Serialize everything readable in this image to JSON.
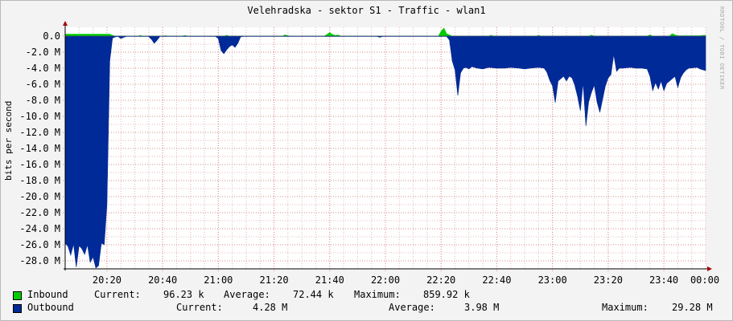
{
  "title": "Velehradska - sektor S1 - Traffic - wlan1",
  "watermark": "RRDTOOL / TOBI OETIKER",
  "colors": {
    "inbound": "#00cc00",
    "outbound": "#002a97",
    "grid_minor": "#e4b8b8",
    "grid_major": "#d98a8a",
    "axis": "#000000",
    "arrow": "#aa0000"
  },
  "chart_data": {
    "type": "area",
    "ylabel": "bits per second",
    "ylim": [
      -29,
      0.5
    ],
    "xlim_minutes": [
      0,
      230
    ],
    "yticks": [
      {
        "value": 0,
        "label": "0.0"
      },
      {
        "value": -2,
        "label": "-2.0 M"
      },
      {
        "value": -4,
        "label": "-4.0 M"
      },
      {
        "value": -6,
        "label": "-6.0 M"
      },
      {
        "value": -8,
        "label": "-8.0 M"
      },
      {
        "value": -10,
        "label": "-10.0 M"
      },
      {
        "value": -12,
        "label": "-12.0 M"
      },
      {
        "value": -14,
        "label": "-14.0 M"
      },
      {
        "value": -16,
        "label": "-16.0 M"
      },
      {
        "value": -18,
        "label": "-18.0 M"
      },
      {
        "value": -20,
        "label": "-20.0 M"
      },
      {
        "value": -22,
        "label": "-22.0 M"
      },
      {
        "value": -24,
        "label": "-24.0 M"
      },
      {
        "value": -26,
        "label": "-26.0 M"
      },
      {
        "value": -28,
        "label": "-28.0 M"
      }
    ],
    "xticks": [
      {
        "value": 15,
        "label": "20:20"
      },
      {
        "value": 35,
        "label": "20:40"
      },
      {
        "value": 55,
        "label": "21:00"
      },
      {
        "value": 75,
        "label": "21:20"
      },
      {
        "value": 95,
        "label": "21:40"
      },
      {
        "value": 115,
        "label": "22:00"
      },
      {
        "value": 135,
        "label": "22:20"
      },
      {
        "value": 155,
        "label": "22:40"
      },
      {
        "value": 175,
        "label": "23:00"
      },
      {
        "value": 195,
        "label": "23:20"
      },
      {
        "value": 215,
        "label": "23:40"
      },
      {
        "value": 235,
        "label": "00:00"
      }
    ],
    "series": [
      {
        "name": "Inbound",
        "points": [
          [
            0,
            0.25
          ],
          [
            16,
            0.25
          ],
          [
            17,
            0.1
          ],
          [
            18,
            0
          ],
          [
            26,
            0
          ],
          [
            27,
            0.08
          ],
          [
            28,
            0
          ],
          [
            35,
            0
          ],
          [
            36,
            0.06
          ],
          [
            37,
            0
          ],
          [
            42,
            0
          ],
          [
            43,
            0.08
          ],
          [
            44,
            0
          ],
          [
            57,
            0
          ],
          [
            58,
            0.1
          ],
          [
            59,
            0
          ],
          [
            78,
            0
          ],
          [
            79,
            0.15
          ],
          [
            80,
            0.05
          ],
          [
            81,
            0
          ],
          [
            93,
            0
          ],
          [
            94,
            0.2
          ],
          [
            95,
            0.45
          ],
          [
            96,
            0.2
          ],
          [
            97,
            0.1
          ],
          [
            98,
            0.15
          ],
          [
            99,
            0
          ],
          [
            134,
            0
          ],
          [
            135,
            0.6
          ],
          [
            136,
            1.0
          ],
          [
            137,
            0.3
          ],
          [
            138,
            0.15
          ],
          [
            139,
            0
          ],
          [
            152,
            0
          ],
          [
            153,
            0.1
          ],
          [
            154,
            0
          ],
          [
            169,
            0
          ],
          [
            170,
            0.08
          ],
          [
            171,
            0
          ],
          [
            188,
            0
          ],
          [
            189,
            0.12
          ],
          [
            190,
            0
          ],
          [
            209,
            0
          ],
          [
            210,
            0.15
          ],
          [
            211,
            0
          ],
          [
            217,
            0
          ],
          [
            218,
            0.3
          ],
          [
            219,
            0.15
          ],
          [
            220,
            0.05
          ],
          [
            228,
            0.05
          ],
          [
            229,
            0.1
          ],
          [
            230,
            0.1
          ]
        ]
      },
      {
        "name": "Outbound",
        "points": [
          [
            0,
            -25.8
          ],
          [
            1,
            -26.2
          ],
          [
            2,
            -27.3
          ],
          [
            3,
            -25.9
          ],
          [
            4,
            -28.8
          ],
          [
            5,
            -26.1
          ],
          [
            6,
            -26.5
          ],
          [
            7,
            -27.2
          ],
          [
            8,
            -26.0
          ],
          [
            9,
            -28.2
          ],
          [
            10,
            -27.5
          ],
          [
            11,
            -28.9
          ],
          [
            12,
            -28.6
          ],
          [
            13,
            -25.8
          ],
          [
            14,
            -26.0
          ],
          [
            15,
            -21.0
          ],
          [
            16,
            -3.1
          ],
          [
            17,
            -0.25
          ],
          [
            18,
            -0.1
          ],
          [
            19,
            -0.05
          ],
          [
            20,
            -0.3
          ],
          [
            21,
            -0.15
          ],
          [
            22,
            -0.05
          ],
          [
            30,
            -0.05
          ],
          [
            31,
            -0.4
          ],
          [
            32,
            -0.9
          ],
          [
            33,
            -0.5
          ],
          [
            34,
            -0.05
          ],
          [
            54,
            -0.05
          ],
          [
            55,
            -0.3
          ],
          [
            56,
            -1.8
          ],
          [
            57,
            -2.2
          ],
          [
            58,
            -1.7
          ],
          [
            59,
            -1.3
          ],
          [
            60,
            -1.1
          ],
          [
            61,
            -1.4
          ],
          [
            62,
            -0.9
          ],
          [
            63,
            -0.1
          ],
          [
            64,
            -0.05
          ],
          [
            112,
            -0.05
          ],
          [
            113,
            -0.15
          ],
          [
            114,
            -0.05
          ],
          [
            137,
            -0.05
          ],
          [
            138,
            -0.5
          ],
          [
            139,
            -3.1
          ],
          [
            140,
            -4.2
          ],
          [
            141,
            -7.4
          ],
          [
            142,
            -4.6
          ],
          [
            143,
            -4.0
          ],
          [
            144,
            -3.9
          ],
          [
            145,
            -4.1
          ],
          [
            146,
            -3.8
          ],
          [
            147,
            -3.9
          ],
          [
            148,
            -4.0
          ],
          [
            150,
            -4.1
          ],
          [
            152,
            -3.9
          ],
          [
            155,
            -4.0
          ],
          [
            158,
            -4.0
          ],
          [
            160,
            -3.9
          ],
          [
            163,
            -4.0
          ],
          [
            165,
            -4.1
          ],
          [
            167,
            -4.0
          ],
          [
            170,
            -3.9
          ],
          [
            172,
            -4.0
          ],
          [
            173,
            -4.5
          ],
          [
            174,
            -5.5
          ],
          [
            175,
            -6.2
          ],
          [
            176,
            -8.3
          ],
          [
            177,
            -5.6
          ],
          [
            178,
            -5.3
          ],
          [
            179,
            -5.0
          ],
          [
            180,
            -5.6
          ],
          [
            181,
            -5.0
          ],
          [
            182,
            -5.2
          ],
          [
            183,
            -6.1
          ],
          [
            184,
            -7.5
          ],
          [
            185,
            -9.3
          ],
          [
            186,
            -5.8
          ],
          [
            187,
            -11.2
          ],
          [
            188,
            -8.2
          ],
          [
            189,
            -7.0
          ],
          [
            190,
            -6.1
          ],
          [
            191,
            -8.2
          ],
          [
            192,
            -9.5
          ],
          [
            193,
            -7.9
          ],
          [
            194,
            -6.2
          ],
          [
            195,
            -5.2
          ],
          [
            196,
            -4.8
          ],
          [
            197,
            -2.3
          ],
          [
            198,
            -4.4
          ],
          [
            199,
            -4.0
          ],
          [
            200,
            -4.0
          ],
          [
            203,
            -3.9
          ],
          [
            205,
            -4.0
          ],
          [
            207,
            -4.0
          ],
          [
            209,
            -4.1
          ],
          [
            210,
            -5.0
          ],
          [
            211,
            -6.8
          ],
          [
            212,
            -5.8
          ],
          [
            213,
            -6.6
          ],
          [
            214,
            -5.6
          ],
          [
            215,
            -6.8
          ],
          [
            216,
            -5.9
          ],
          [
            217,
            -5.6
          ],
          [
            218,
            -5.3
          ],
          [
            219,
            -5.0
          ],
          [
            220,
            -6.4
          ],
          [
            221,
            -5.2
          ],
          [
            222,
            -4.6
          ],
          [
            223,
            -4.2
          ],
          [
            224,
            -4.0
          ],
          [
            227,
            -3.9
          ],
          [
            228,
            -4.1
          ],
          [
            229,
            -4.2
          ],
          [
            230,
            -4.3
          ]
        ]
      }
    ]
  },
  "legend": {
    "inbound": {
      "label": "Inbound",
      "current_label": "Current:",
      "current": "96.23 k",
      "average_label": "Average:",
      "average": "72.44 k",
      "maximum_label": "Maximum:",
      "maximum": "859.92 k"
    },
    "outbound": {
      "label": "Outbound",
      "current_label": "Current:",
      "current": "4.28 M",
      "average_label": "Average:",
      "average": "3.98 M",
      "maximum_label": "Maximum:",
      "maximum": "29.28 M"
    }
  }
}
